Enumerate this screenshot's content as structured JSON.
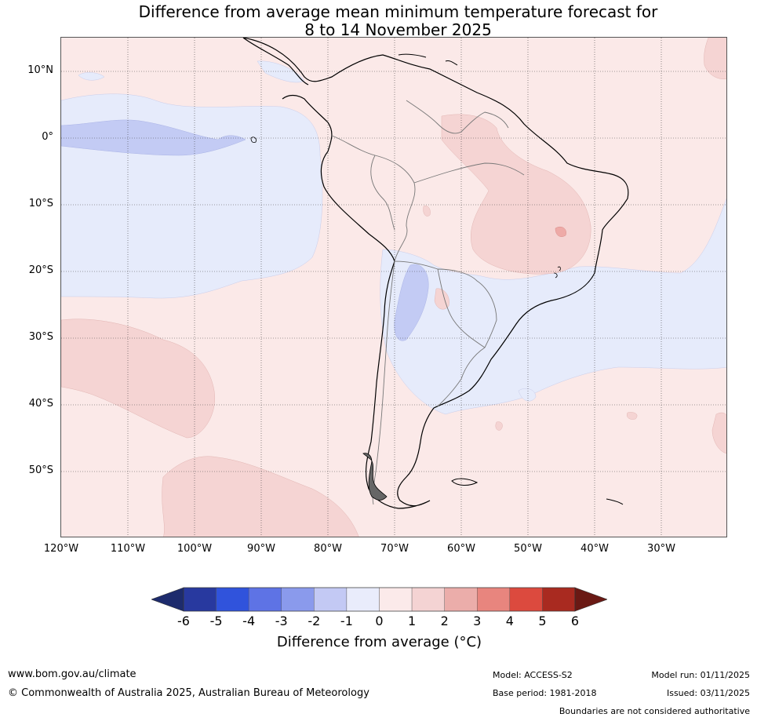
{
  "title": {
    "line1": "Difference from average mean minimum temperature forecast for",
    "line2": "8 to 14 November 2025"
  },
  "map": {
    "latitude_labels": [
      "10°N",
      "0°",
      "10°S",
      "20°S",
      "30°S",
      "40°S",
      "50°S"
    ],
    "longitude_labels": [
      "120°W",
      "110°W",
      "100°W",
      "90°W",
      "80°W",
      "70°W",
      "60°W",
      "50°W",
      "40°W",
      "30°W"
    ],
    "colors": {
      "ocean_neutral_warm": "#fbe9e8",
      "cool_light": "#e6ebfb",
      "cool_mid": "#c3cbf4",
      "warm_mid": "#f5d4d3",
      "warm_strong": "#eeaaa7",
      "coast": "#000000",
      "border": "#777777"
    }
  },
  "colorbar": {
    "ticks": [
      "-6",
      "-5",
      "-4",
      "-3",
      "-2",
      "-1",
      "0",
      "1",
      "2",
      "3",
      "4",
      "5",
      "6"
    ],
    "segment_colors": [
      "#28399f",
      "#3053dc",
      "#5e73e5",
      "#8a9aec",
      "#c3c9f4",
      "#e9ecfb",
      "#fbeaea",
      "#f4d3d3",
      "#ebadaa",
      "#e8857e",
      "#dc4a3e",
      "#a92a20"
    ],
    "under_color": "#1d2b6d",
    "over_color": "#6a1914",
    "label": "Difference from average (°C)"
  },
  "footer": {
    "website": "www.bom.gov.au/climate",
    "copyright": "© Commonwealth of Australia 2025, Australian Bureau of Meteorology",
    "model": "Model: ACCESS-S2",
    "base_period": "Base period: 1981-2018",
    "model_run": "Model run: 01/11/2025",
    "issued": "Issued: 03/11/2025",
    "disclaimer": "Boundaries are not considered authoritative"
  }
}
